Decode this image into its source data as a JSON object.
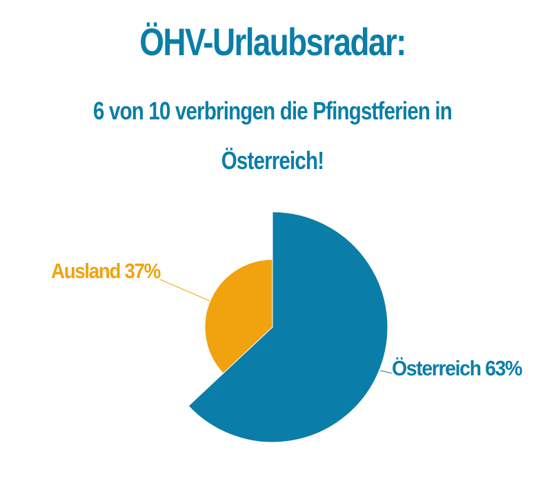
{
  "header": {
    "title": "ÖHV-Urlaubsradar:",
    "subtitle_line1": "6 von 10 verbringen die Pfingstferien in",
    "subtitle_line2": "Österreich!"
  },
  "colors": {
    "title": "#0a7ea8",
    "oesterreich": "#0a7ea8",
    "ausland": "#f0a30f"
  },
  "chart_data": {
    "type": "pie",
    "title": "ÖHV-Urlaubsradar:",
    "categories": [
      "Österreich",
      "Ausland"
    ],
    "values": [
      63,
      37
    ],
    "labels": [
      "Österreich 63%",
      "Ausland 37%"
    ],
    "colors": [
      "#0a7ea8",
      "#f0a30f"
    ],
    "start_angle": "12 o'clock",
    "direction": "clockwise",
    "note_visual": "variable-radius pie: Österreich slice drawn with larger radius than Ausland slice"
  }
}
